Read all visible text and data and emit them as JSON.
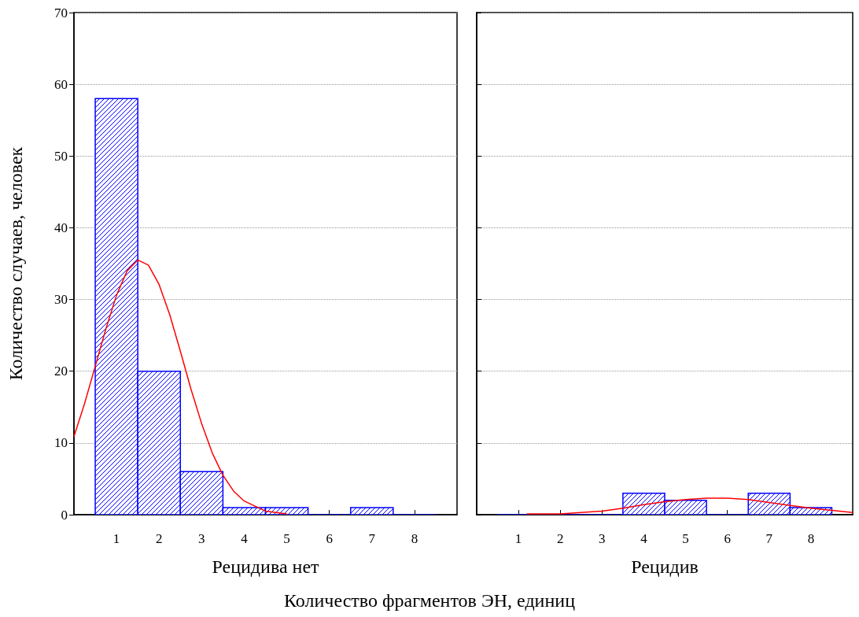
{
  "chart_data": [
    {
      "type": "histogram",
      "ylabel": "Количество случаев, человек",
      "xlabel": "Рецидива нет",
      "annotations": [
        "Количество фрагментов ЭН, единиц"
      ],
      "bins": [
        0.5,
        1.5,
        2.5,
        3.5,
        4.5,
        5.5,
        6.5,
        7.5,
        8.5
      ],
      "series": [
        {
          "color": "#0000ff",
          "values": [
            58,
            20,
            6,
            1,
            1,
            0,
            1,
            0
          ]
        },
        {
          "type": "line",
          "color": "#ff0000",
          "x": [
            0,
            0.25,
            0.5,
            0.75,
            1,
            1.25,
            1.5,
            1.75,
            2,
            2.25,
            2.5,
            2.75,
            3,
            3.25,
            3.5,
            3.75,
            4,
            4.5,
            5
          ],
          "values": [
            10.9,
            15.5,
            20.7,
            25.9,
            30.6,
            34.0,
            35.5,
            34.8,
            32.1,
            27.9,
            22.8,
            17.5,
            12.7,
            8.6,
            5.5,
            3.3,
            1.9,
            0.5,
            0.1
          ]
        }
      ],
      "xlim": [
        0,
        9
      ],
      "xticks": [
        1,
        2,
        3,
        4,
        5,
        6,
        7,
        8
      ],
      "ylim": [
        0,
        70
      ],
      "yticks": [
        0,
        10,
        20,
        30,
        40,
        50,
        60,
        70
      ],
      "grid": "y",
      "marker": "none"
    },
    {
      "type": "histogram",
      "xlabel": "Рецидив",
      "bins": [
        0.5,
        1.5,
        2.5,
        3.5,
        4.5,
        5.5,
        6.5,
        7.5,
        8.5
      ],
      "series": [
        {
          "color": "#0000ff",
          "values": [
            0,
            0,
            0,
            3,
            2,
            0,
            3,
            1
          ]
        },
        {
          "type": "line",
          "color": "#ff0000",
          "x": [
            1.2,
            2,
            3,
            3.5,
            4,
            4.5,
            5,
            5.5,
            6,
            6.5,
            7,
            7.5,
            8,
            8.5,
            9
          ],
          "values": [
            0.1,
            0.1,
            0.5,
            0.9,
            1.4,
            1.8,
            2.1,
            2.3,
            2.3,
            2.1,
            1.7,
            1.3,
            0.9,
            0.6,
            0.3
          ]
        }
      ],
      "xlim": [
        0,
        9
      ],
      "xticks": [
        1,
        2,
        3,
        4,
        5,
        6,
        7,
        8
      ],
      "ylim": [
        0,
        70
      ],
      "yticks": [
        0,
        10,
        20,
        30,
        40,
        50,
        60,
        70
      ],
      "grid": "y",
      "marker": "none",
      "tick_labels": "x"
    }
  ]
}
